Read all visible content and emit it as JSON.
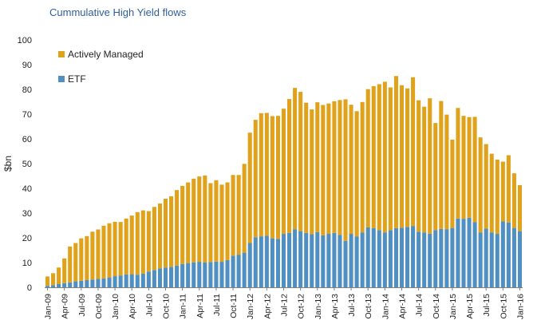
{
  "chart_data": {
    "type": "bar",
    "stacked": true,
    "title": "Cummulative  High Yield flows",
    "xlabel": "",
    "ylabel": "$bn",
    "ylim": [
      0,
      100
    ],
    "yticks": [
      0,
      10,
      20,
      30,
      40,
      50,
      60,
      70,
      80,
      90,
      100
    ],
    "grid": false,
    "legend_position": "top-left",
    "colors": {
      "ETF": "#4f8fc2",
      "Actively Managed": "#e0a21b"
    },
    "tick_labels": [
      "Jan-09",
      "Apr-09",
      "Jul-09",
      "Oct-09",
      "Jan-10",
      "Apr-10",
      "Jul-10",
      "Oct-10",
      "Jan-11",
      "Apr-11",
      "Jul-11",
      "Oct-11",
      "Jan-12",
      "Apr-12",
      "Jul-12",
      "Oct-12",
      "Jan-13",
      "Apr-13",
      "Jul-13",
      "Oct-13",
      "Jan-14",
      "Apr-14",
      "Jul-14",
      "Oct-14",
      "Jan-15",
      "Apr-15",
      "Jul-15",
      "Oct-15",
      "Jan-16"
    ],
    "categories": [
      "Jan-09",
      "Feb-09",
      "Mar-09",
      "Apr-09",
      "May-09",
      "Jun-09",
      "Jul-09",
      "Aug-09",
      "Sep-09",
      "Oct-09",
      "Nov-09",
      "Dec-09",
      "Jan-10",
      "Feb-10",
      "Mar-10",
      "Apr-10",
      "May-10",
      "Jun-10",
      "Jul-10",
      "Aug-10",
      "Sep-10",
      "Oct-10",
      "Nov-10",
      "Dec-10",
      "Jan-11",
      "Feb-11",
      "Mar-11",
      "Apr-11",
      "May-11",
      "Jun-11",
      "Jul-11",
      "Aug-11",
      "Sep-11",
      "Oct-11",
      "Nov-11",
      "Dec-11",
      "Jan-12",
      "Feb-12",
      "Mar-12",
      "Apr-12",
      "May-12",
      "Jun-12",
      "Jul-12",
      "Aug-12",
      "Sep-12",
      "Oct-12",
      "Nov-12",
      "Dec-12",
      "Jan-13",
      "Feb-13",
      "Mar-13",
      "Apr-13",
      "May-13",
      "Jun-13",
      "Jul-13",
      "Aug-13",
      "Sep-13",
      "Oct-13",
      "Nov-13",
      "Dec-13",
      "Jan-14",
      "Feb-14",
      "Mar-14",
      "Apr-14",
      "May-14",
      "Jun-14",
      "Jul-14",
      "Aug-14",
      "Sep-14",
      "Oct-14",
      "Nov-14",
      "Dec-14",
      "Jan-15",
      "Feb-15",
      "Mar-15",
      "Apr-15",
      "May-15",
      "Jun-15",
      "Jul-15",
      "Aug-15",
      "Sep-15",
      "Oct-15",
      "Nov-15",
      "Dec-15",
      "Jan-16"
    ],
    "series": [
      {
        "name": "ETF",
        "values": [
          0.6,
          0.9,
          1.3,
          1.7,
          2.0,
          2.4,
          2.6,
          2.9,
          3.1,
          3.4,
          3.6,
          4.0,
          4.5,
          4.8,
          5.2,
          5.3,
          5.1,
          5.5,
          6.4,
          7.0,
          7.6,
          8.0,
          8.2,
          8.8,
          9.4,
          9.8,
          10.1,
          10.3,
          10.0,
          10.2,
          10.4,
          10.3,
          11.0,
          12.8,
          13.2,
          14.0,
          17.9,
          20.2,
          20.6,
          20.8,
          19.8,
          19.6,
          21.6,
          22.0,
          23.5,
          22.7,
          22.0,
          21.5,
          22.3,
          21.0,
          21.6,
          22.0,
          21.2,
          18.8,
          21.6,
          20.6,
          22.2,
          24.2,
          23.9,
          23.1,
          22.2,
          23.1,
          23.9,
          24.1,
          24.4,
          24.8,
          22.5,
          22.2,
          21.7,
          23.1,
          23.6,
          23.5,
          24.0,
          27.8,
          27.7,
          28.1,
          26.3,
          22.2,
          23.7,
          22.2,
          21.6,
          26.6,
          26.2,
          24.0,
          22.7
        ]
      },
      {
        "name": "Actively Managed",
        "values": [
          3.8,
          4.8,
          6.7,
          10.0,
          14.5,
          15.5,
          17.2,
          17.8,
          19.4,
          20.0,
          21.3,
          21.9,
          22.0,
          21.6,
          22.6,
          23.7,
          25.3,
          25.6,
          24.4,
          25.5,
          26.3,
          27.8,
          28.6,
          30.5,
          31.6,
          32.6,
          33.8,
          34.5,
          35.2,
          31.9,
          32.9,
          31.2,
          31.4,
          32.6,
          32.2,
          35.9,
          44.6,
          47.5,
          49.8,
          49.7,
          49.4,
          49.7,
          50.6,
          54.1,
          57.1,
          56.3,
          52.6,
          50.4,
          52.5,
          52.7,
          52.7,
          53.2,
          54.5,
          57.2,
          52.2,
          50.6,
          52.7,
          55.9,
          57.4,
          59.0,
          60.9,
          57.7,
          61.5,
          57.6,
          56.0,
          60.1,
          53.1,
          50.8,
          54.7,
          43.3,
          51.7,
          46.3,
          35.7,
          44.7,
          41.6,
          40.7,
          42.6,
          38.4,
          34.2,
          31.8,
          30.0,
          24.2,
          27.2,
          22.1,
          18.6
        ]
      }
    ]
  }
}
